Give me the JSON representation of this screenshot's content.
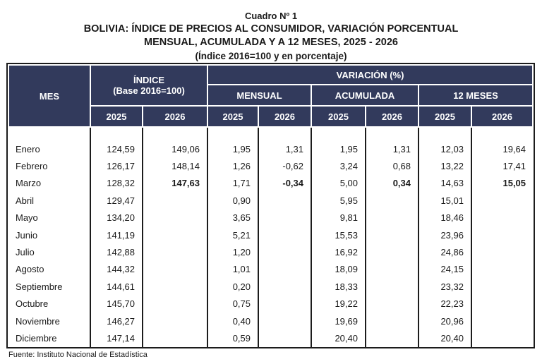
{
  "title": {
    "cuadro": "Cuadro Nº 1",
    "line1": "BOLIVIA: ÍNDICE DE PRECIOS AL CONSUMIDOR, VARIACIÓN PORCENTUAL",
    "line2": "MENSUAL, ACUMULADA Y A 12 MESES, 2025 - 2026",
    "subtitle": "(Índice 2016=100 y en porcentaje)"
  },
  "table": {
    "header": {
      "mes": "MES",
      "indice": "ÍNDICE",
      "indice_base": "(Base 2016=100)",
      "variacion": "VARIACIÓN (%)",
      "mensual": "MENSUAL",
      "acumulada": "ACUMULADA",
      "doce_meses": "12 MESES",
      "years": [
        "2025",
        "2026"
      ]
    },
    "rows": [
      {
        "mes": "Enero",
        "i25": "124,59",
        "i26": "149,06",
        "m25": "1,95",
        "m26": "1,31",
        "a25": "1,95",
        "a26": "1,31",
        "d25": "12,03",
        "d26": "19,64",
        "bold2026": false
      },
      {
        "mes": "Febrero",
        "i25": "126,17",
        "i26": "148,14",
        "m25": "1,26",
        "m26": "-0,62",
        "a25": "3,24",
        "a26": "0,68",
        "d25": "13,22",
        "d26": "17,41",
        "bold2026": false
      },
      {
        "mes": "Marzo",
        "i25": "128,32",
        "i26": "147,63",
        "m25": "1,71",
        "m26": "-0,34",
        "a25": "5,00",
        "a26": "0,34",
        "d25": "14,63",
        "d26": "15,05",
        "bold2026": true
      },
      {
        "mes": "Abril",
        "i25": "129,47",
        "i26": "",
        "m25": "0,90",
        "m26": "",
        "a25": "5,95",
        "a26": "",
        "d25": "15,01",
        "d26": "",
        "bold2026": false
      },
      {
        "mes": "Mayo",
        "i25": "134,20",
        "i26": "",
        "m25": "3,65",
        "m26": "",
        "a25": "9,81",
        "a26": "",
        "d25": "18,46",
        "d26": "",
        "bold2026": false
      },
      {
        "mes": "Junio",
        "i25": "141,19",
        "i26": "",
        "m25": "5,21",
        "m26": "",
        "a25": "15,53",
        "a26": "",
        "d25": "23,96",
        "d26": "",
        "bold2026": false
      },
      {
        "mes": "Julio",
        "i25": "142,88",
        "i26": "",
        "m25": "1,20",
        "m26": "",
        "a25": "16,92",
        "a26": "",
        "d25": "24,86",
        "d26": "",
        "bold2026": false
      },
      {
        "mes": "Agosto",
        "i25": "144,32",
        "i26": "",
        "m25": "1,01",
        "m26": "",
        "a25": "18,09",
        "a26": "",
        "d25": "24,15",
        "d26": "",
        "bold2026": false
      },
      {
        "mes": "Septiembre",
        "i25": "144,61",
        "i26": "",
        "m25": "0,20",
        "m26": "",
        "a25": "18,33",
        "a26": "",
        "d25": "23,32",
        "d26": "",
        "bold2026": false
      },
      {
        "mes": "Octubre",
        "i25": "145,70",
        "i26": "",
        "m25": "0,75",
        "m26": "",
        "a25": "19,22",
        "a26": "",
        "d25": "22,23",
        "d26": "",
        "bold2026": false
      },
      {
        "mes": "Noviembre",
        "i25": "146,27",
        "i26": "",
        "m25": "0,40",
        "m26": "",
        "a25": "19,69",
        "a26": "",
        "d25": "20,96",
        "d26": "",
        "bold2026": false
      },
      {
        "mes": "Diciembre",
        "i25": "147,14",
        "i26": "",
        "m25": "0,59",
        "m26": "",
        "a25": "20,40",
        "a26": "",
        "d25": "20,40",
        "d26": "",
        "bold2026": false
      }
    ]
  },
  "footer": {
    "source": "Fuente: Instituto Nacional de Estadística"
  },
  "colors": {
    "header_bg": "#323a5c",
    "header_text": "#ffffff",
    "border_dark": "#1c1c1c",
    "body_text": "#1a1a1a"
  }
}
